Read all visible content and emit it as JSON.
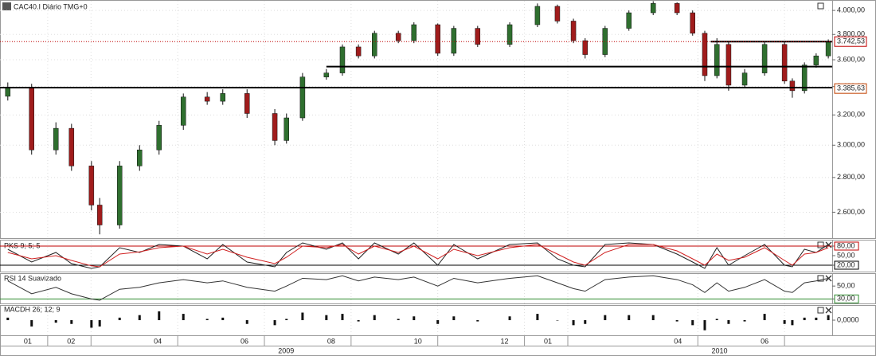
{
  "chart_data": [
    {
      "type": "candlestick",
      "title": "CAC40.I Diário TMG+0",
      "log_scale": true,
      "grid": true,
      "x": [
        -0.92,
        -0.37,
        0.19,
        0.55,
        1.01,
        1.2,
        1.66,
        2.12,
        2.57,
        3.13,
        3.68,
        4.04,
        4.6,
        5.24,
        5.51,
        5.88,
        6.43,
        6.8,
        7.17,
        7.54,
        8.09,
        8.45,
        9.0,
        9.37,
        9.92,
        10.66,
        11.3,
        11.76,
        12.13,
        12.4,
        12.86,
        13.41,
        13.97,
        14.52,
        14.88,
        15.16,
        15.44,
        15.71,
        16.08,
        16.54,
        17.0,
        17.18,
        17.46,
        17.73,
        18.01
      ],
      "open": [
        3330,
        3390,
        2970,
        3110,
        2870,
        2640,
        2530,
        2870,
        2970,
        3130,
        3325,
        3295,
        3350,
        3210,
        3030,
        3180,
        3470,
        3500,
        3700,
        3630,
        3810,
        3750,
        3880,
        3650,
        3850,
        3720,
        3880,
        4035,
        3910,
        3750,
        3640,
        3850,
        3980,
        4060,
        3980,
        3810,
        3480,
        3720,
        3410,
        3500,
        3720,
        3440,
        3370,
        3560,
        3630
      ],
      "high": [
        3430,
        3420,
        3150,
        3140,
        2900,
        2680,
        2900,
        3000,
        3160,
        3350,
        3360,
        3380,
        3380,
        3240,
        3210,
        3500,
        3530,
        3720,
        3720,
        3830,
        3830,
        3900,
        3890,
        3870,
        3870,
        3900,
        4060,
        4050,
        3930,
        3770,
        3870,
        4000,
        4080,
        4070,
        4000,
        3830,
        3770,
        3740,
        3530,
        3740,
        3740,
        3460,
        3580,
        3650,
        3760
      ],
      "low": [
        3300,
        2940,
        2940,
        2840,
        2610,
        2480,
        2510,
        2840,
        2940,
        3100,
        3270,
        3270,
        3180,
        3000,
        3010,
        3160,
        3450,
        3480,
        3610,
        3610,
        3730,
        3730,
        3630,
        3630,
        3700,
        3700,
        3860,
        3890,
        3730,
        3610,
        3620,
        3830,
        3960,
        3960,
        3790,
        3440,
        3460,
        3370,
        3390,
        3480,
        3420,
        3320,
        3350,
        3540,
        3610
      ],
      "close": [
        3390,
        2970,
        3110,
        2870,
        2640,
        2530,
        2870,
        2970,
        3130,
        3325,
        3295,
        3350,
        3210,
        3030,
        3180,
        3470,
        3500,
        3700,
        3630,
        3810,
        3750,
        3880,
        3650,
        3850,
        3720,
        3880,
        4035,
        3910,
        3750,
        3640,
        3850,
        3980,
        4060,
        3980,
        3810,
        3480,
        3720,
        3410,
        3500,
        3720,
        3440,
        3370,
        3560,
        3630,
        3742
      ],
      "up_color": "#2f6f2f",
      "down_color": "#a01c1c",
      "xlim": [
        -1.1,
        18.1
      ],
      "ylim": [
        2460,
        4090
      ],
      "yticks": [
        {
          "value": 2600,
          "label": "2.600,00"
        },
        {
          "value": 2800,
          "label": "2.800,00"
        },
        {
          "value": 3000,
          "label": "3.000,00"
        },
        {
          "value": 3200,
          "label": "3.200,00"
        },
        {
          "value": 3400,
          "label": "3.400,00"
        },
        {
          "value": 3600,
          "label": "3.600,00"
        },
        {
          "value": 3800,
          "label": "3.800,00"
        },
        {
          "value": 4000,
          "label": "4.000,00"
        }
      ],
      "lines": [
        {
          "value": 3392,
          "from": -1.1
        },
        {
          "value": 3548,
          "from": 6.43
        },
        {
          "value": 3742,
          "from": 15.3
        }
      ],
      "markers": [
        {
          "value": 3742.53,
          "label": "3.742,53",
          "color": "#c00000"
        },
        {
          "value": 3385.63,
          "label": "3.385,63",
          "color": "#c04000"
        }
      ],
      "xticks": [
        {
          "value": 0,
          "label": "01"
        },
        {
          "value": 1,
          "label": "02"
        },
        {
          "value": 3,
          "label": "04"
        },
        {
          "value": 5,
          "label": "06"
        },
        {
          "value": 7,
          "label": "08"
        },
        {
          "value": 9,
          "label": "10"
        },
        {
          "value": 11,
          "label": "12"
        },
        {
          "value": 12,
          "label": "01"
        },
        {
          "value": 15,
          "label": "04"
        },
        {
          "value": 17,
          "label": "06"
        }
      ],
      "years": [
        {
          "value": 5.5,
          "label": "2009"
        },
        {
          "value": 15.5,
          "label": "2010"
        }
      ]
    },
    {
      "type": "line",
      "title": "PKS 9; 5; 5",
      "x": [
        -0.92,
        -0.37,
        0.19,
        0.55,
        1.01,
        1.2,
        1.66,
        2.12,
        2.57,
        3.13,
        3.68,
        4.04,
        4.6,
        5.24,
        5.51,
        5.88,
        6.43,
        6.8,
        7.17,
        7.54,
        8.09,
        8.45,
        9.0,
        9.37,
        9.92,
        10.66,
        11.3,
        11.76,
        12.13,
        12.4,
        12.86,
        13.41,
        13.97,
        14.52,
        14.88,
        15.16,
        15.44,
        15.71,
        16.08,
        16.54,
        17.0,
        17.18,
        17.46,
        17.73,
        18.01
      ],
      "series": [
        {
          "color": "#222222",
          "values": [
            70,
            30,
            60,
            25,
            10,
            15,
            75,
            60,
            85,
            80,
            40,
            85,
            30,
            15,
            60,
            90,
            70,
            90,
            40,
            90,
            55,
            90,
            20,
            85,
            40,
            85,
            90,
            40,
            20,
            15,
            85,
            90,
            85,
            55,
            30,
            10,
            75,
            20,
            50,
            85,
            20,
            15,
            70,
            60,
            85
          ]
        },
        {
          "color": "#d02020",
          "values": [
            60,
            40,
            50,
            35,
            18,
            15,
            55,
            62,
            75,
            80,
            55,
            70,
            45,
            25,
            45,
            80,
            75,
            85,
            55,
            80,
            60,
            80,
            40,
            70,
            50,
            75,
            85,
            55,
            30,
            20,
            60,
            85,
            85,
            65,
            40,
            20,
            55,
            35,
            45,
            75,
            35,
            20,
            55,
            60,
            75
          ]
        }
      ],
      "ylim": [
        0,
        100
      ],
      "yticks": [
        {
          "value": 20,
          "label": "20,00",
          "color": "#000000"
        },
        {
          "value": 50,
          "label": "50,00"
        },
        {
          "value": 80,
          "label": "80,00",
          "color": "#c00000"
        }
      ]
    },
    {
      "type": "line",
      "title": "RSI 14 Suavizado",
      "x": [
        -0.92,
        -0.37,
        0.19,
        0.55,
        1.01,
        1.2,
        1.66,
        2.12,
        2.57,
        3.13,
        3.68,
        4.04,
        4.6,
        5.24,
        5.51,
        5.88,
        6.43,
        6.8,
        7.17,
        7.54,
        8.09,
        8.45,
        9.0,
        9.37,
        9.92,
        10.66,
        11.3,
        11.76,
        12.13,
        12.4,
        12.86,
        13.41,
        13.97,
        14.52,
        14.88,
        15.16,
        15.44,
        15.71,
        16.08,
        16.54,
        17.0,
        17.18,
        17.46,
        17.73,
        18.01
      ],
      "series": [
        {
          "color": "#333333",
          "values": [
            58,
            38,
            48,
            38,
            30,
            28,
            45,
            48,
            55,
            60,
            55,
            58,
            48,
            42,
            50,
            62,
            60,
            66,
            58,
            64,
            60,
            64,
            50,
            62,
            55,
            62,
            66,
            55,
            46,
            42,
            60,
            64,
            66,
            60,
            52,
            40,
            55,
            42,
            48,
            60,
            42,
            40,
            55,
            58,
            62
          ]
        }
      ],
      "ylim": [
        23,
        70
      ],
      "yticks": [
        {
          "value": 30,
          "label": "30,00",
          "color": "#2e8b2e"
        },
        {
          "value": 50,
          "label": "50,00"
        }
      ]
    },
    {
      "type": "bar",
      "title": "MACDH 26; 12; 9",
      "x": [
        -0.92,
        -0.37,
        0.19,
        0.55,
        1.01,
        1.2,
        1.66,
        2.12,
        2.57,
        3.13,
        3.68,
        4.04,
        4.6,
        5.24,
        5.51,
        5.88,
        6.43,
        6.8,
        7.17,
        7.54,
        8.09,
        8.45,
        9.0,
        9.37,
        9.92,
        10.66,
        11.3,
        11.76,
        12.13,
        12.4,
        12.86,
        13.41,
        13.97,
        14.52,
        14.88,
        15.16,
        15.44,
        15.71,
        16.08,
        16.54,
        17.0,
        17.18,
        17.46,
        17.73,
        18.01
      ],
      "values": [
        10,
        -25,
        -10,
        -15,
        -30,
        -25,
        10,
        20,
        35,
        25,
        5,
        10,
        -15,
        -20,
        5,
        30,
        20,
        25,
        -5,
        20,
        5,
        15,
        -15,
        15,
        -5,
        15,
        25,
        0,
        -20,
        -15,
        20,
        20,
        20,
        -5,
        -20,
        -40,
        5,
        -15,
        -5,
        25,
        -15,
        -20,
        10,
        10,
        20
      ],
      "color": "#111111",
      "ylim": [
        -60,
        60
      ],
      "yticks": [
        {
          "value": 0,
          "label": "0,0000"
        }
      ]
    }
  ]
}
